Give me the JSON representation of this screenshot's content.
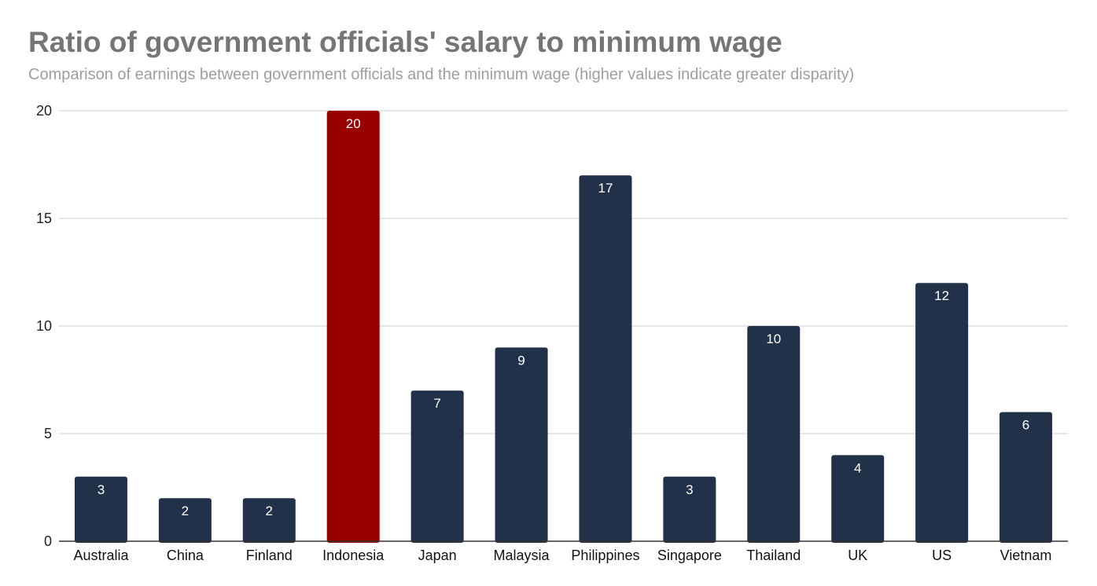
{
  "chart_data": {
    "type": "bar",
    "title": "Ratio of government officials' salary to minimum wage",
    "subtitle": "Comparison of earnings between government officials and the minimum wage (higher values indicate greater disparity)",
    "xlabel": "",
    "ylabel": "",
    "categories": [
      "Australia",
      "China",
      "Finland",
      "Indonesia",
      "Japan",
      "Malaysia",
      "Philippines",
      "Singapore",
      "Thailand",
      "UK",
      "US",
      "Vietnam"
    ],
    "values": [
      3,
      2,
      2,
      20,
      7,
      9,
      17,
      3,
      10,
      4,
      12,
      6
    ],
    "data_labels": [
      "3",
      "2",
      "2",
      "20",
      "7",
      "9",
      "17",
      "3",
      "10",
      "4",
      "12",
      "6"
    ],
    "ylim": [
      0,
      20
    ],
    "yticks": [
      0,
      5,
      10,
      15,
      20
    ],
    "ytick_labels": [
      "0",
      "5",
      "10",
      "15",
      "20"
    ],
    "grid": true,
    "legend": "none",
    "colors": {
      "default_bar": "#22314a",
      "highlight_bar": "#990000",
      "highlight_category": "Indonesia",
      "gridline": "#d6d6d6",
      "axis": "#333333"
    }
  }
}
